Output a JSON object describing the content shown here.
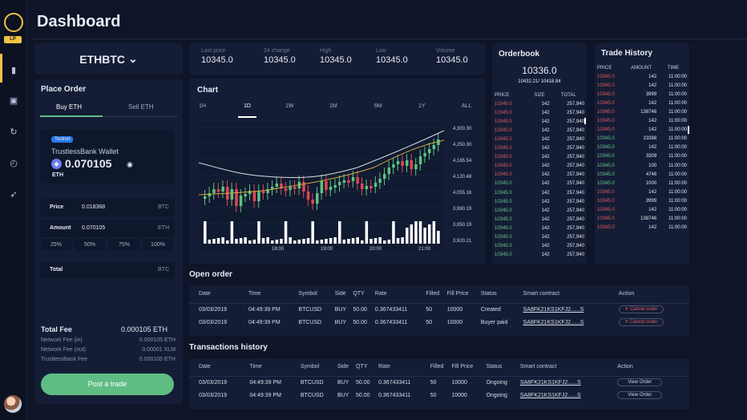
{
  "app": {
    "title": "Dashboard",
    "badge": "LP"
  },
  "pair": {
    "label": "ETHBTC"
  },
  "stats": [
    {
      "label": "Last price",
      "value": "10345.0"
    },
    {
      "label": "24 change",
      "value": "10345.0"
    },
    {
      "label": "High",
      "value": "10345.0"
    },
    {
      "label": "Low",
      "value": "10345.0"
    },
    {
      "label": "Volume",
      "value": "10345.0"
    }
  ],
  "place_order": {
    "title": "Place Order",
    "tabs": [
      "Buy ETH",
      "Sell ETH"
    ],
    "wallet": {
      "tag": "Testnet",
      "name": "TrustlessBank Wallet",
      "amount": "0.070105",
      "unit": "ETH"
    },
    "price": {
      "label": "Price",
      "value": "0.018368",
      "unit": "BTC"
    },
    "amount": {
      "label": "Amount",
      "value": "0.070105",
      "unit": "ETH"
    },
    "percent": [
      "25%",
      "50%",
      "75%",
      "100%"
    ],
    "total": {
      "label": "Total",
      "unit": "BTC"
    },
    "fee": {
      "title": "Total Fee",
      "value": "0.000105 ETH",
      "rows": [
        {
          "label": "Network Fee (in)",
          "value": "0.000105 ETH"
        },
        {
          "label": "Network Fee (out)",
          "value": "0.00001 XLM"
        },
        {
          "label": "TrustlessBank Fee",
          "value": "0.000105 ETH"
        }
      ]
    },
    "button": "Post a trade"
  },
  "chart": {
    "title": "Chart",
    "ranges": [
      "1H",
      "1D",
      "1W",
      "1M",
      "6M",
      "1Y",
      "ALL"
    ]
  },
  "chart_data": {
    "type": "candlestick",
    "x": [
      "18:00",
      "19:00",
      "20:00",
      "21:00"
    ],
    "y_ticks": [
      "4,300.30",
      "4,250.30",
      "4,185.54",
      "4,120.48",
      "4,055.16",
      "3,990.19",
      "3,950.19",
      "3,920.21"
    ]
  },
  "orderbook": {
    "title": "Orderbook",
    "price": "10336.0",
    "range": "10432.21/ 10418.84",
    "headers": [
      "PRICE",
      "SIZE",
      "TOTAL"
    ],
    "rows": [
      [
        "10345.0",
        "142",
        "257,940",
        "r"
      ],
      [
        "10345.0",
        "142",
        "257,940",
        "r"
      ],
      [
        "10345.0",
        "142",
        "257,940",
        "r"
      ],
      [
        "10345.0",
        "142",
        "257,940",
        "r"
      ],
      [
        "10345.0",
        "142",
        "257,940",
        "r"
      ],
      [
        "10345.0",
        "142",
        "257,940",
        "r"
      ],
      [
        "10345.0",
        "142",
        "257,940",
        "r"
      ],
      [
        "10345.0",
        "142",
        "257,940",
        "r"
      ],
      [
        "10345.0",
        "142",
        "257,940",
        "r"
      ],
      [
        "10345.0",
        "142",
        "257,940",
        "g"
      ],
      [
        "10345.0",
        "142",
        "257,940",
        "g"
      ],
      [
        "10345.0",
        "142",
        "257,940",
        "g"
      ],
      [
        "10345.0",
        "142",
        "257,940",
        "g"
      ],
      [
        "10345.0",
        "142",
        "257,940",
        "g"
      ],
      [
        "10345.0",
        "142",
        "257,940",
        "g"
      ],
      [
        "10345.0",
        "142",
        "257,940",
        "g"
      ],
      [
        "10345.0",
        "142",
        "257,940",
        "g"
      ],
      [
        "10345.0",
        "142",
        "257,940",
        "g"
      ]
    ]
  },
  "history": {
    "title": "Trade History",
    "headers": [
      "PRICE",
      "AMOUNT",
      "TIME"
    ],
    "rows": [
      [
        "10345.0",
        "142",
        "11:00:00",
        "r"
      ],
      [
        "10345.0",
        "142",
        "11:00:00",
        "r"
      ],
      [
        "10345.0",
        "3999",
        "11:00:00",
        "r"
      ],
      [
        "10345.0",
        "142",
        "11:00:00",
        "r"
      ],
      [
        "10345.0",
        "138746",
        "11:00:00",
        "r"
      ],
      [
        "10345.0",
        "142",
        "11:00:00",
        "r"
      ],
      [
        "10345.0",
        "142",
        "11:00:00",
        "r"
      ],
      [
        "10345.0",
        "23398",
        "11:00:00",
        "g"
      ],
      [
        "10345.0",
        "142",
        "11:00:00",
        "g"
      ],
      [
        "10345.0",
        "3309",
        "11:00:00",
        "g"
      ],
      [
        "10345.0",
        "100",
        "11:00:00",
        "g"
      ],
      [
        "10345.0",
        "4746",
        "11:00:00",
        "g"
      ],
      [
        "10345.0",
        "1000",
        "11:00:00",
        "g"
      ],
      [
        "10345.0",
        "142",
        "11:00:00",
        "r"
      ],
      [
        "10345.0",
        "3999",
        "11:00:00",
        "r"
      ],
      [
        "10345.0",
        "142",
        "11:00:00",
        "r"
      ],
      [
        "10345.0",
        "138746",
        "11:00:00",
        "r"
      ],
      [
        "10345.0",
        "142",
        "11:00:00",
        "r"
      ]
    ]
  },
  "open_order": {
    "title": "Open order",
    "headers": [
      "Date",
      "Time",
      "Symbol",
      "Side",
      "QTY",
      "Rate",
      "Filled",
      "Fill Price",
      "Status",
      "Smart contract",
      "Action"
    ],
    "rows": [
      [
        "03/03/2019",
        "04:49:39 PM",
        "BTCUSD",
        "BUY",
        "50.00",
        "0.367433411",
        "50",
        "10000",
        "Created",
        "SA8FK21KS1KFJ2......S",
        "✕ Cancel order"
      ],
      [
        "03/03/2019",
        "04:49:39 PM",
        "BTCUSD",
        "BUY",
        "50.00",
        "0.367433411",
        "50",
        "10000",
        "Buyer paid",
        "SA8FK21KS1KFJ2......S",
        "✕ Cancel order"
      ]
    ]
  },
  "transactions": {
    "title": "Transactions history",
    "headers": [
      "Date",
      "Time",
      "Symbol",
      "Side",
      "QTY",
      "Rate",
      "Filled",
      "Fill Price",
      "Status",
      "Smart contract",
      "Action"
    ],
    "rows": [
      [
        "03/03/2019",
        "04:49:39 PM",
        "BTCUSD",
        "BUY",
        "50.00",
        "0.367433411",
        "50",
        "10000",
        "Ongoing",
        "SA8FK21KS1KFJ2......S",
        "View Order"
      ],
      [
        "03/03/2019",
        "04:49:39 PM",
        "BTCUSD",
        "BUY",
        "50.00",
        "0.367433411",
        "50",
        "10000",
        "Ongoing",
        "SA8FK21KS1KFJ2......S",
        "View Order"
      ]
    ]
  }
}
